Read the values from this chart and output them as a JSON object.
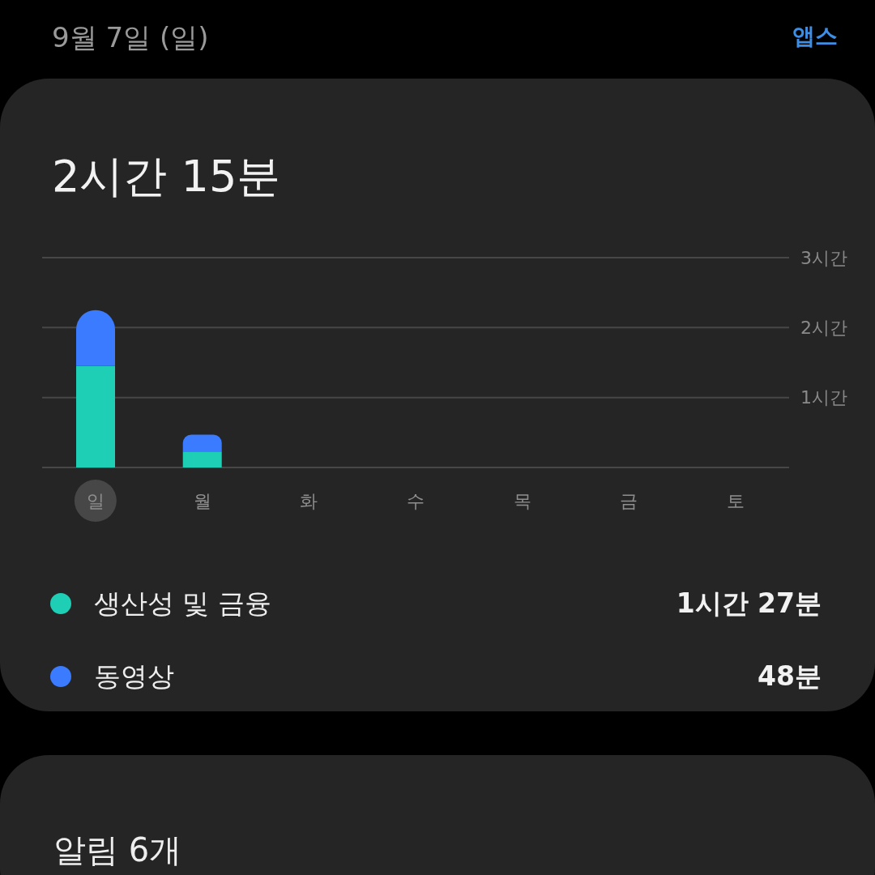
{
  "chart_data": {
    "type": "bar",
    "title": "2시간 15분",
    "subtitle": "9월 7일 (일)",
    "categories": [
      "일",
      "월",
      "화",
      "수",
      "목",
      "금",
      "토"
    ],
    "series": [
      {
        "name": "생산성 및 금융",
        "color": "#1ecfb6",
        "values": [
          1.45,
          0.23,
          null,
          null,
          null,
          null,
          null
        ]
      },
      {
        "name": "동영상",
        "color": "#3b7bff",
        "values": [
          0.8,
          0.24,
          null,
          null,
          null,
          null,
          null
        ]
      }
    ],
    "stacked": true,
    "ylim": [
      0,
      3
    ],
    "yticks": [
      {
        "value": 0,
        "label": null
      },
      {
        "value": 1,
        "label": "1시간"
      },
      {
        "value": 2,
        "label": "2시간"
      },
      {
        "value": 3,
        "label": "3시간"
      }
    ],
    "grid": "y",
    "legend": "bottom",
    "annotations": [
      "앱스",
      "1시간 27분",
      "48분",
      "알림 6개"
    ]
  }
}
